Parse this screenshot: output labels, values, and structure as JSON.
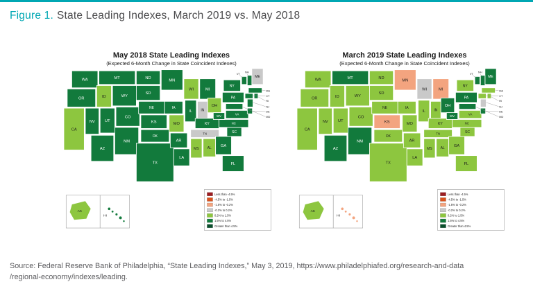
{
  "figure": {
    "label": "Figure 1.",
    "title": "State Leading Indexes, March 2019 vs. May 2018"
  },
  "source": {
    "line1": "Source: Federal Reserve Bank of Philadelphia, “State Leading Indexes,” May 3, 2019, https://www.philadelphiafed.org/research-and-data",
    "line2": "/regional-economy/indexes/leading."
  },
  "colors": {
    "accent_teal": "#00a7b3",
    "heading_text": "#4a4a4c",
    "source_text": "#5b5b5e",
    "map_title_text": "#1a1a1a",
    "bins": {
      "b1": "#9d1c20",
      "b2": "#d9531e",
      "b3": "#f3a47f",
      "b4": "#c9c9c9",
      "b5": "#8dc63f",
      "b6": "#127a3c",
      "b7": "#0a4f2c"
    }
  },
  "legend": [
    {
      "bin": "b1",
      "label": "Less than -4.5%"
    },
    {
      "bin": "b2",
      "label": "-4.5% to -1.5%"
    },
    {
      "bin": "b3",
      "label": "-1.5% to -0.2%"
    },
    {
      "bin": "b4",
      "label": "-0.2% to 0.2%"
    },
    {
      "bin": "b5",
      "label": "0.2% to 1.5%"
    },
    {
      "bin": "b6",
      "label": "1.5% to 4.5%"
    },
    {
      "bin": "b7",
      "label": "Greater than 4.5%"
    }
  ],
  "chart_data": [
    {
      "type": "heatmap",
      "title": "May 2018 State Leading Indexes",
      "subtitle": "(Expected 6-Month Change in State Coincident Indexes)",
      "states": {
        "WA": "b6",
        "OR": "b6",
        "CA": "b5",
        "NV": "b6",
        "ID": "b5",
        "MT": "b6",
        "WY": "b6",
        "UT": "b6",
        "CO": "b6",
        "AZ": "b6",
        "NM": "b6",
        "ND": "b6",
        "SD": "b6",
        "NE": "b6",
        "KS": "b6",
        "OK": "b6",
        "TX": "b6",
        "MN": "b6",
        "IA": "b6",
        "MO": "b5",
        "AR": "b6",
        "LA": "b6",
        "WI": "b5",
        "IL": "b6",
        "MI": "b6",
        "IN": "b4",
        "OH": "b5",
        "KY": "b6",
        "TN": "b4",
        "MS": "b5",
        "AL": "b5",
        "GA": "b6",
        "FL": "b6",
        "SC": "b6",
        "NC": "b6",
        "VA": "b6",
        "WV": "b6",
        "PA": "b6",
        "NY": "b6",
        "NJ": "b6",
        "DE": "b6",
        "MD": "b6",
        "ME": "b4",
        "VT": "b6",
        "NH": "b6",
        "MA": "b6",
        "CT": "b6",
        "RI": "b6",
        "AK": "b5",
        "HI": "b6"
      }
    },
    {
      "type": "heatmap",
      "title": "March 2019 State Leading Indexes",
      "subtitle": "(Expected 6-Month Change in State Coincident Indexes)",
      "states": {
        "WA": "b5",
        "OR": "b5",
        "CA": "b5",
        "NV": "b5",
        "ID": "b5",
        "MT": "b6",
        "WY": "b5",
        "UT": "b5",
        "CO": "b5",
        "AZ": "b6",
        "NM": "b6",
        "ND": "b5",
        "SD": "b5",
        "NE": "b5",
        "KS": "b3",
        "OK": "b5",
        "TX": "b5",
        "MN": "b3",
        "IA": "b5",
        "MO": "b5",
        "AR": "b5",
        "LA": "b5",
        "WI": "b4",
        "IL": "b5",
        "MI": "b3",
        "IN": "b5",
        "OH": "b6",
        "KY": "b5",
        "TN": "b5",
        "MS": "b5",
        "AL": "b5",
        "GA": "b5",
        "FL": "b5",
        "SC": "b5",
        "NC": "b5",
        "VA": "b5",
        "WV": "b6",
        "PA": "b6",
        "NY": "b5",
        "NJ": "b4",
        "DE": "b6",
        "MD": "b6",
        "ME": "b6",
        "VT": "b6",
        "NH": "b6",
        "MA": "b5",
        "CT": "b5",
        "RI": "b5",
        "AK": "b5",
        "HI": "b3"
      }
    }
  ]
}
